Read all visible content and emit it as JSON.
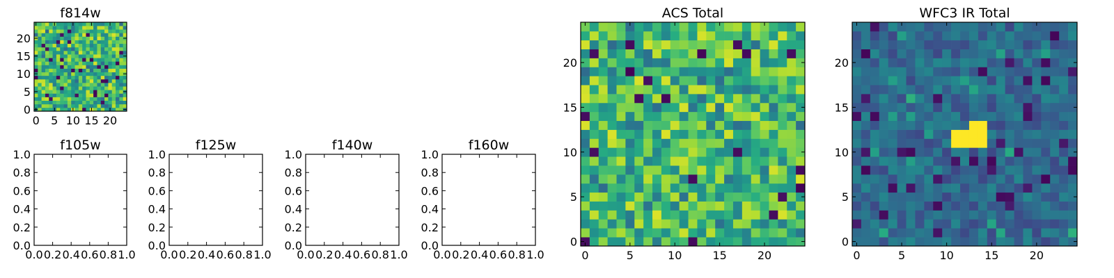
{
  "chart_data": [
    {
      "type": "heatmap",
      "title": "f814w",
      "grid_shape": [
        25,
        25
      ],
      "xlim": [
        -0.5,
        24.5
      ],
      "ylim": [
        -0.5,
        24.5
      ],
      "xticks": [
        0,
        5,
        10,
        15,
        20
      ],
      "yticks": [
        0,
        5,
        10,
        15,
        20
      ],
      "colormap": "viridis",
      "seed": 814,
      "values_note": "pixel noise image"
    },
    {
      "type": "heatmap",
      "title": "f105w",
      "empty": true,
      "xlim": [
        0.0,
        1.0
      ],
      "ylim": [
        0.0,
        1.0
      ],
      "xticks": [
        "0.0",
        "0.2",
        "0.4",
        "0.6",
        "0.8",
        "1.0"
      ],
      "yticks": [
        "0.0",
        "0.2",
        "0.4",
        "0.6",
        "0.8",
        "1.0"
      ]
    },
    {
      "type": "heatmap",
      "title": "f125w",
      "empty": true,
      "xlim": [
        0.0,
        1.0
      ],
      "ylim": [
        0.0,
        1.0
      ],
      "xticks": [
        "0.0",
        "0.2",
        "0.4",
        "0.6",
        "0.8",
        "1.0"
      ],
      "yticks": [
        "0.0",
        "0.2",
        "0.4",
        "0.6",
        "0.8",
        "1.0"
      ]
    },
    {
      "type": "heatmap",
      "title": "f140w",
      "empty": true,
      "xlim": [
        0.0,
        1.0
      ],
      "ylim": [
        0.0,
        1.0
      ],
      "xticks": [
        "0.0",
        "0.2",
        "0.4",
        "0.6",
        "0.8",
        "1.0"
      ],
      "yticks": [
        "0.0",
        "0.2",
        "0.4",
        "0.6",
        "0.8",
        "1.0"
      ]
    },
    {
      "type": "heatmap",
      "title": "f160w",
      "empty": true,
      "xlim": [
        0.0,
        1.0
      ],
      "ylim": [
        0.0,
        1.0
      ],
      "xticks": [
        "0.0",
        "0.2",
        "0.4",
        "0.6",
        "0.8",
        "1.0"
      ],
      "yticks": [
        "0.0",
        "0.2",
        "0.4",
        "0.6",
        "0.8",
        "1.0"
      ]
    },
    {
      "type": "heatmap",
      "title": "ACS Total",
      "grid_shape": [
        25,
        25
      ],
      "xlim": [
        -0.5,
        24.5
      ],
      "ylim": [
        -0.5,
        24.5
      ],
      "xticks": [
        0,
        5,
        10,
        15,
        20
      ],
      "yticks": [
        0,
        5,
        10,
        15,
        20
      ],
      "colormap": "viridis",
      "seed": 2024
    },
    {
      "type": "heatmap",
      "title": "WFC3 IR Total",
      "grid_shape": [
        25,
        25
      ],
      "xlim": [
        -0.5,
        24.5
      ],
      "ylim": [
        -0.5,
        24.5
      ],
      "xticks": [
        0,
        5,
        10,
        15,
        20
      ],
      "yticks": [
        0,
        5,
        10,
        15,
        20
      ],
      "colormap": "viridis",
      "seed": 31337,
      "bright_source": {
        "x_range": [
          11,
          14
        ],
        "y_range": [
          11,
          13
        ],
        "value": 1.0
      }
    }
  ]
}
